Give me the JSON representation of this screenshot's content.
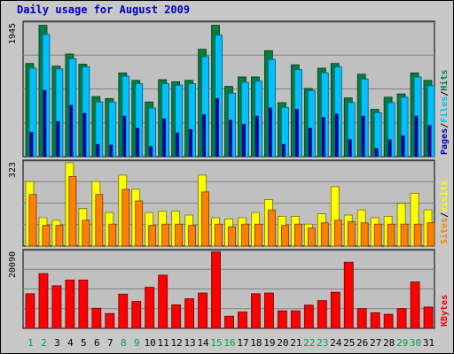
{
  "chart_data": {
    "type": "bar",
    "title": "Daily usage for August 2009",
    "days": [
      "1",
      "2",
      "3",
      "4",
      "5",
      "6",
      "7",
      "8",
      "9",
      "10",
      "11",
      "12",
      "13",
      "14",
      "15",
      "16",
      "17",
      "18",
      "19",
      "20",
      "21",
      "22",
      "23",
      "24",
      "25",
      "26",
      "27",
      "28",
      "29",
      "30",
      "31"
    ],
    "weekend_days": [
      "1",
      "2",
      "8",
      "9",
      "15",
      "16",
      "22",
      "23",
      "29",
      "30"
    ],
    "panels": [
      {
        "id": "hits-panel",
        "max_label": "1945",
        "ymax": 1945,
        "legend": [
          "Pages",
          "Files",
          "Hits"
        ],
        "series": [
          {
            "name": "Hits",
            "color": "#008040",
            "values": [
              1380,
              1945,
              1340,
              1520,
              1370,
              890,
              860,
              1240,
              1130,
              810,
              1140,
              1110,
              1130,
              1590,
              1945,
              1040,
              1180,
              1180,
              1570,
              800,
              1360,
              1010,
              1310,
              1380,
              870,
              1220,
              700,
              880,
              930,
              1240,
              1130
            ]
          },
          {
            "name": "Files",
            "color": "#00c0ff",
            "values": [
              1310,
              1810,
              1300,
              1450,
              1330,
              810,
              810,
              1190,
              1080,
              720,
              1080,
              1060,
              1080,
              1480,
              1800,
              940,
              1100,
              1120,
              1440,
              730,
              1290,
              980,
              1240,
              1330,
              800,
              1150,
              650,
              800,
              880,
              1180,
              1050
            ]
          },
          {
            "name": "Pages",
            "color": "#0000c0",
            "values": [
              360,
              980,
              520,
              760,
              640,
              180,
              170,
              600,
              420,
              150,
              560,
              350,
              400,
              620,
              860,
              540,
              480,
              600,
              720,
              180,
              700,
              420,
              580,
              630,
              250,
              600,
              120,
              250,
              310,
              600,
              460
            ]
          }
        ]
      },
      {
        "id": "visits-panel",
        "max_label": "323",
        "ymax": 323,
        "legend": [
          "Sites",
          "Visits"
        ],
        "series": [
          {
            "name": "Visits",
            "color": "#ffff00",
            "values": [
              250,
              110,
              100,
              323,
              145,
              250,
              130,
              275,
              220,
              130,
              135,
              135,
              120,
              275,
              110,
              105,
              110,
              130,
              180,
              115,
              115,
              85,
              125,
              230,
              120,
              140,
              110,
              115,
              165,
              205,
              140
            ]
          },
          {
            "name": "Sites",
            "color": "#ff8000",
            "values": [
              200,
              80,
              80,
              270,
              100,
              200,
              85,
              220,
              175,
              80,
              85,
              85,
              80,
              210,
              85,
              75,
              85,
              85,
              140,
              80,
              85,
              70,
              90,
              100,
              95,
              90,
              85,
              85,
              85,
              85,
              90
            ]
          }
        ]
      },
      {
        "id": "kbytes-panel",
        "max_label": "20090",
        "ymax": 20090,
        "legend": [
          "KBytes"
        ],
        "series": [
          {
            "name": "KBytes",
            "color": "#ff0000",
            "values": [
              9100,
              14400,
              11200,
              12700,
              12700,
              5300,
              3900,
              9000,
              7100,
              10800,
              14000,
              6200,
              7800,
              9300,
              20090,
              3200,
              4300,
              9100,
              9300,
              4600,
              4600,
              6100,
              7300,
              9500,
              17400,
              5200,
              4100,
              3700,
              5200,
              12200,
              5600
            ]
          }
        ]
      }
    ]
  }
}
